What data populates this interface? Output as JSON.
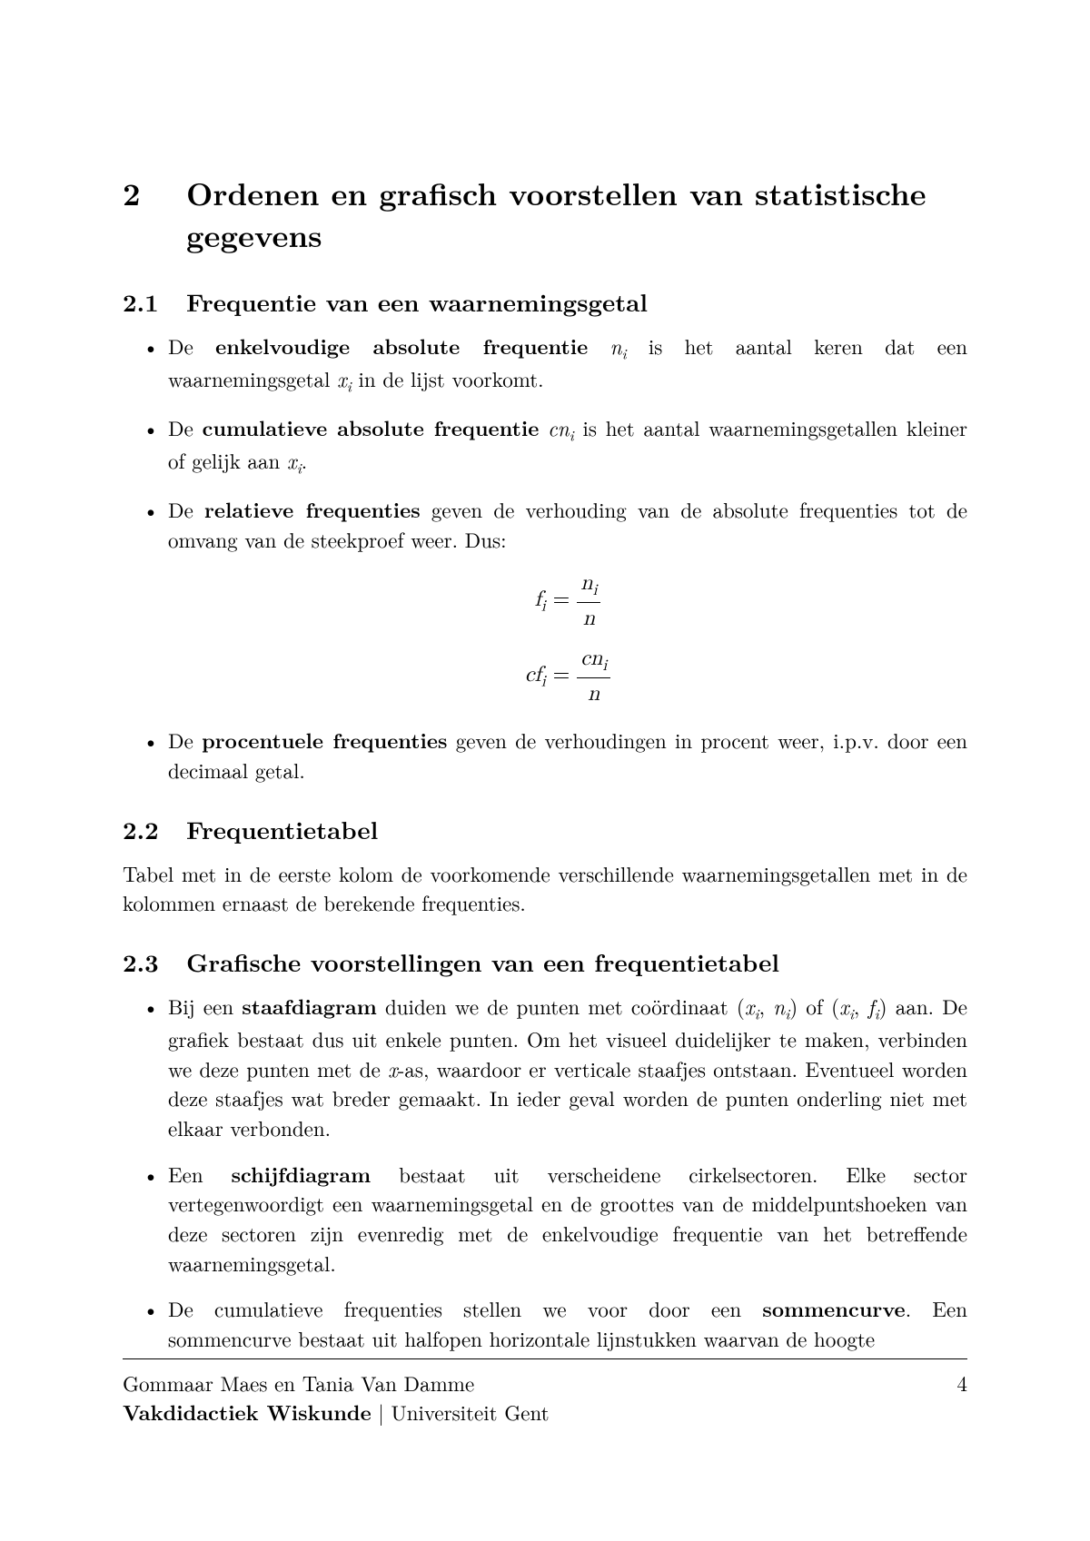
{
  "section": {
    "number": "2",
    "title": "Ordenen en grafisch voorstellen van statistische gegevens"
  },
  "sub1": {
    "number": "2.1",
    "title": "Frequentie van een waarnemingsgetal",
    "bullets": [
      {
        "pre": "De ",
        "bold": "enkelvoudige absolute frequentie",
        "mid1": " ",
        "sym1": "n",
        "sub1": "i",
        "mid2": " is het aantal keren dat een waarnemingsgetal ",
        "sym2": "x",
        "sub2": "i",
        "post": " in de lijst voorkomt."
      },
      {
        "pre": "De ",
        "bold": "cumulatieve absolute frequentie",
        "mid1": " ",
        "sym1": "cn",
        "sub1": "i",
        "mid2": " is het aantal waarnemingsgetallen kleiner of gelijk aan ",
        "sym2": "x",
        "sub2": "i",
        "post": "."
      },
      {
        "pre": "De ",
        "bold": "relatieve frequenties",
        "post": " geven de verhouding van de absolute frequenties tot de omvang van de steekproef weer. Dus:"
      },
      {
        "pre": "De ",
        "bold": "procentuele frequenties",
        "post": " geven de verhoudingen in procent weer, i.p.v. door een decimaal getal."
      }
    ],
    "equations": {
      "eq1_lhs_var": "f",
      "eq1_lhs_sub": "i",
      "eq1_num_var": "n",
      "eq1_num_sub": "i",
      "eq1_den": "n",
      "eq2_lhs_pre": "c",
      "eq2_lhs_var": "f",
      "eq2_lhs_sub": "i",
      "eq2_num_pre": "c",
      "eq2_num_var": "n",
      "eq2_num_sub": "i",
      "eq2_den": "n"
    }
  },
  "sub2": {
    "number": "2.2",
    "title": "Frequentietabel",
    "para": "Tabel met in de eerste kolom de voorkomende verschillende waarnemingsgetallen met in de kolommen ernaast de berekende frequenties."
  },
  "sub3": {
    "number": "2.3",
    "title": "Grafische voorstellingen van een frequentietabel",
    "bullets": [
      {
        "pre": "Bij een ",
        "bold": "staafdiagram",
        "mid1": " duiden we de punten met coördinaat (",
        "sym1a": "x",
        "sub1a": "i",
        "comma1": ", ",
        "sym1b": "n",
        "sub1b": "i",
        "mid2": ") of (",
        "sym2a": "x",
        "sub2a": "i",
        "comma2": ", ",
        "sym2b": "f",
        "sub2b": "i",
        "mid3": ") aan. De grafiek bestaat dus uit enkele punten. Om het visueel duidelijker te maken, verbinden we deze punten met de ",
        "sym3": "x",
        "post": "-as, waardoor er verticale staafjes ontstaan. Eventueel worden deze staafjes wat breder gemaakt. In ieder geval worden de punten onderling niet met elkaar verbonden."
      },
      {
        "pre": "Een ",
        "bold": "schijfdiagram",
        "post": " bestaat uit verscheidene cirkelsectoren.  Elke sector vertegenwoordigt een waarnemingsgetal en de groottes van de middelpuntshoeken van deze sectoren zijn evenredig met de enkelvoudige frequentie van het betreffende waarnemingsgetal."
      },
      {
        "pre": "De cumulatieve frequenties stellen we voor door een ",
        "bold": "sommencurve",
        "post": ". Een sommencurve bestaat uit halfopen horizontale lijnstukken waarvan de hoogte"
      }
    ]
  },
  "footer": {
    "authors": "Gommaar Maes en Tania Van Damme",
    "course_bold": "Vakdidactiek Wiskunde",
    "course_rest": " | Universiteit Gent",
    "page": "4"
  }
}
